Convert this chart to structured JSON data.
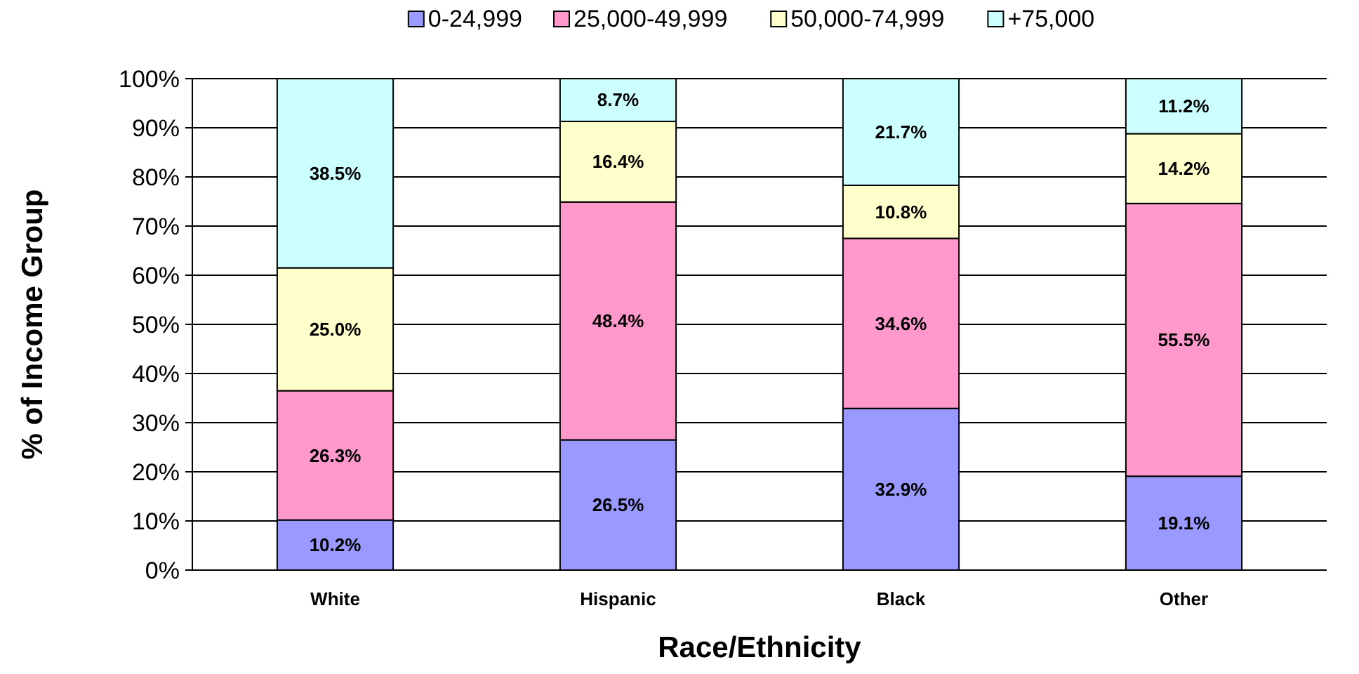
{
  "chart_data": {
    "type": "bar",
    "stacked": true,
    "xlabel": "Race/Ethnicity",
    "ylabel": "% of Income Group",
    "categories": [
      "White",
      "Hispanic",
      "Black",
      "Other"
    ],
    "series": [
      {
        "name": "0-24,999",
        "color": "#9999ff",
        "values": [
          10.2,
          26.5,
          32.9,
          19.1
        ],
        "value_labels": [
          "10.2%",
          "26.5%",
          "32.9%",
          "19.1%"
        ]
      },
      {
        "name": "25,000-49,999",
        "color": "#ff99cc",
        "values": [
          26.3,
          48.4,
          34.6,
          55.5
        ],
        "value_labels": [
          "26.3%",
          "48.4%",
          "34.6%",
          "55.5%"
        ]
      },
      {
        "name": "50,000-74,999",
        "color": "#ffffcc",
        "values": [
          25.0,
          16.4,
          10.8,
          14.2
        ],
        "value_labels": [
          "25.0%",
          "16.4%",
          "10.8%",
          "14.2%"
        ]
      },
      {
        "name": "+75,000",
        "color": "#ccffff",
        "values": [
          38.5,
          8.7,
          21.7,
          11.2
        ],
        "value_labels": [
          "38.5%",
          "8.7%",
          "21.7%",
          "11.2%"
        ]
      }
    ],
    "ylim": [
      0,
      100
    ],
    "yticks": [
      {
        "value": 0,
        "label": "0%"
      },
      {
        "value": 10,
        "label": "10%"
      },
      {
        "value": 20,
        "label": "20%"
      },
      {
        "value": 30,
        "label": "30%"
      },
      {
        "value": 40,
        "label": "40%"
      },
      {
        "value": 50,
        "label": "50%"
      },
      {
        "value": 60,
        "label": "60%"
      },
      {
        "value": 70,
        "label": "70%"
      },
      {
        "value": 80,
        "label": "80%"
      },
      {
        "value": 90,
        "label": "90%"
      },
      {
        "value": 100,
        "label": "100%"
      }
    ],
    "grid": "y",
    "legend": "top"
  }
}
